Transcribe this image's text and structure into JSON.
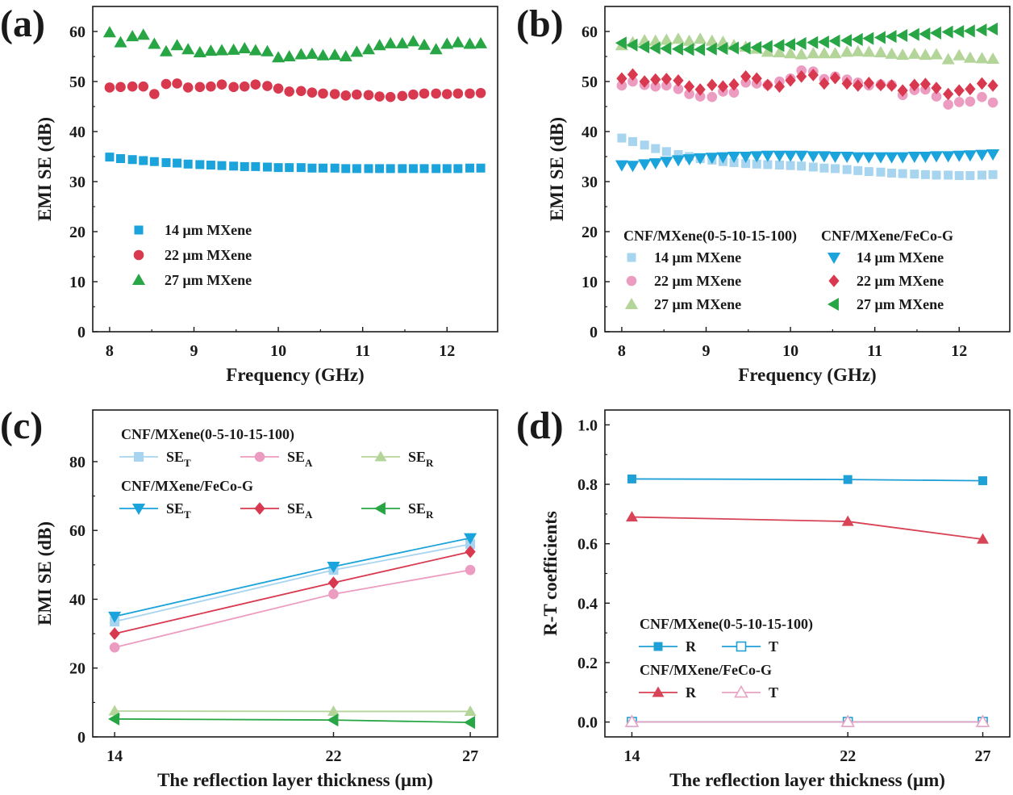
{
  "colors": {
    "blue": "#1ba3dc",
    "red": "#d9394e",
    "green": "#28a645",
    "light_blue": "#a7d4ef",
    "light_pink": "#ec9cc0",
    "light_green": "#b4d59a",
    "line_blue": "#1fa0d6",
    "line_red": "#d84356",
    "line_pink": "#e8a3c3",
    "axis": "#1a1a1a"
  },
  "chart_data": [
    {
      "id": "a",
      "label": "(a)",
      "type": "scatter",
      "xlabel": "Frequency (GHz)",
      "ylabel": "EMI SE (dB)",
      "xlim": [
        7.8,
        12.6
      ],
      "ylim": [
        0,
        65
      ],
      "xticks": [
        8,
        9,
        10,
        11,
        12
      ],
      "yticks": [
        0,
        10,
        20,
        30,
        40,
        50,
        60
      ],
      "legend_position": "lower-left",
      "series": [
        {
          "name": "14 μm  MXene",
          "marker": "square",
          "color": "#1ba3dc",
          "x": [
            8.0,
            8.13,
            8.27,
            8.4,
            8.53,
            8.67,
            8.8,
            8.93,
            9.07,
            9.2,
            9.33,
            9.47,
            9.6,
            9.73,
            9.87,
            10.0,
            10.13,
            10.27,
            10.4,
            10.53,
            10.67,
            10.8,
            10.93,
            11.07,
            11.2,
            11.33,
            11.47,
            11.6,
            11.73,
            11.87,
            12.0,
            12.13,
            12.27,
            12.4
          ],
          "y": [
            34.9,
            34.6,
            34.4,
            34.2,
            34.0,
            33.8,
            33.7,
            33.5,
            33.4,
            33.3,
            33.2,
            33.1,
            33.0,
            33.0,
            32.9,
            32.8,
            32.8,
            32.8,
            32.7,
            32.7,
            32.7,
            32.6,
            32.6,
            32.6,
            32.6,
            32.6,
            32.6,
            32.6,
            32.6,
            32.6,
            32.6,
            32.6,
            32.7,
            32.7
          ]
        },
        {
          "name": "22 μm  MXene",
          "marker": "circle",
          "color": "#d9394e",
          "x": [
            8.0,
            8.13,
            8.27,
            8.4,
            8.53,
            8.67,
            8.8,
            8.93,
            9.07,
            9.2,
            9.33,
            9.47,
            9.6,
            9.73,
            9.87,
            10.0,
            10.13,
            10.27,
            10.4,
            10.53,
            10.67,
            10.8,
            10.93,
            11.07,
            11.2,
            11.33,
            11.47,
            11.6,
            11.73,
            11.87,
            12.0,
            12.13,
            12.27,
            12.4
          ],
          "y": [
            48.8,
            48.9,
            49.0,
            49.0,
            47.5,
            49.5,
            49.6,
            48.8,
            48.9,
            49.0,
            49.4,
            48.9,
            49.0,
            49.4,
            49.1,
            48.6,
            48.0,
            48.1,
            47.8,
            47.6,
            47.5,
            47.2,
            47.4,
            47.3,
            47.0,
            46.9,
            47.1,
            47.4,
            47.6,
            47.6,
            47.5,
            47.6,
            47.6,
            47.7
          ]
        },
        {
          "name": "27 μm  MXene",
          "marker": "triangle-up",
          "color": "#28a645",
          "x": [
            8.0,
            8.13,
            8.27,
            8.4,
            8.53,
            8.67,
            8.8,
            8.93,
            9.07,
            9.2,
            9.33,
            9.47,
            9.6,
            9.73,
            9.87,
            10.0,
            10.13,
            10.27,
            10.4,
            10.53,
            10.67,
            10.8,
            10.93,
            11.07,
            11.2,
            11.33,
            11.47,
            11.6,
            11.73,
            11.87,
            12.0,
            12.13,
            12.27,
            12.4
          ],
          "y": [
            59.8,
            57.8,
            59.0,
            59.3,
            57.5,
            56.0,
            57.2,
            56.4,
            55.8,
            56.1,
            56.2,
            56.3,
            56.6,
            56.2,
            56.0,
            54.8,
            55.0,
            55.4,
            55.5,
            55.2,
            55.3,
            55.0,
            55.9,
            56.4,
            57.2,
            57.6,
            57.6,
            58.0,
            57.3,
            56.4,
            57.5,
            57.8,
            57.5,
            57.6
          ]
        }
      ]
    },
    {
      "id": "b",
      "label": "(b)",
      "type": "scatter",
      "xlabel": "Frequency (GHz)",
      "ylabel": "EMI SE (dB)",
      "xlim": [
        7.8,
        12.6
      ],
      "ylim": [
        0,
        65
      ],
      "xticks": [
        8,
        9,
        10,
        11,
        12
      ],
      "yticks": [
        0,
        10,
        20,
        30,
        40,
        50,
        60
      ],
      "legend_position": "lower",
      "legend_groups": [
        "CNF/MXene(0-5-10-15-100)",
        "CNF/MXene/FeCo-G"
      ],
      "series": [
        {
          "name": "14 μm  MXene",
          "group": 0,
          "marker": "square",
          "color": "#a7d4ef",
          "x": [
            8.0,
            8.13,
            8.27,
            8.4,
            8.53,
            8.67,
            8.8,
            8.93,
            9.07,
            9.2,
            9.33,
            9.47,
            9.6,
            9.73,
            9.87,
            10.0,
            10.13,
            10.27,
            10.4,
            10.53,
            10.67,
            10.8,
            10.93,
            11.07,
            11.2,
            11.33,
            11.47,
            11.6,
            11.73,
            11.87,
            12.0,
            12.13,
            12.27,
            12.4
          ],
          "y": [
            38.7,
            38.0,
            37.3,
            36.6,
            36.0,
            35.4,
            35.0,
            34.6,
            34.3,
            34.0,
            33.8,
            33.6,
            33.5,
            33.4,
            33.3,
            33.2,
            33.1,
            32.9,
            32.7,
            32.6,
            32.4,
            32.2,
            32.0,
            31.9,
            31.7,
            31.6,
            31.5,
            31.4,
            31.3,
            31.3,
            31.2,
            31.2,
            31.3,
            31.4
          ]
        },
        {
          "name": "22 μm  MXene",
          "group": 0,
          "marker": "circle",
          "color": "#ec9cc0",
          "x": [
            8.0,
            8.13,
            8.27,
            8.4,
            8.53,
            8.67,
            8.8,
            8.93,
            9.07,
            9.2,
            9.33,
            9.47,
            9.6,
            9.73,
            9.87,
            10.0,
            10.13,
            10.27,
            10.4,
            10.53,
            10.67,
            10.8,
            10.93,
            11.07,
            11.2,
            11.33,
            11.47,
            11.6,
            11.73,
            11.87,
            12.0,
            12.13,
            12.27,
            12.4
          ],
          "y": [
            49.2,
            50.0,
            49.3,
            49.0,
            49.2,
            48.5,
            47.5,
            47.0,
            46.9,
            48.0,
            47.8,
            49.8,
            49.6,
            49.3,
            50.0,
            50.6,
            52.2,
            52.0,
            50.5,
            51.0,
            50.4,
            49.8,
            49.2,
            49.4,
            49.3,
            47.3,
            48.3,
            48.4,
            47.0,
            45.4,
            45.9,
            46.0,
            46.9,
            45.8
          ]
        },
        {
          "name": "27 μm  MXene",
          "group": 0,
          "marker": "triangle-up",
          "color": "#b4d59a",
          "x": [
            8.0,
            8.13,
            8.27,
            8.4,
            8.53,
            8.67,
            8.8,
            8.93,
            9.07,
            9.2,
            9.33,
            9.47,
            9.6,
            9.73,
            9.87,
            10.0,
            10.13,
            10.27,
            10.4,
            10.53,
            10.67,
            10.8,
            10.93,
            11.07,
            11.2,
            11.33,
            11.47,
            11.6,
            11.73,
            11.87,
            12.0,
            12.13,
            12.27,
            12.4
          ],
          "y": [
            57.2,
            57.8,
            58.2,
            58.1,
            58.3,
            58.5,
            58.1,
            58.5,
            58.1,
            57.9,
            57.2,
            56.9,
            56.5,
            55.9,
            55.8,
            55.6,
            55.4,
            55.6,
            55.6,
            55.6,
            55.9,
            56.0,
            55.9,
            55.8,
            55.5,
            55.3,
            55.5,
            55.3,
            55.4,
            54.4,
            55.2,
            54.7,
            54.6,
            54.5
          ]
        },
        {
          "name": "14 μm  MXene",
          "group": 1,
          "marker": "triangle-down",
          "color": "#1ba3dc",
          "x": [
            8.0,
            8.13,
            8.27,
            8.4,
            8.53,
            8.67,
            8.8,
            8.93,
            9.07,
            9.2,
            9.33,
            9.47,
            9.6,
            9.73,
            9.87,
            10.0,
            10.13,
            10.27,
            10.4,
            10.53,
            10.67,
            10.8,
            10.93,
            11.07,
            11.2,
            11.33,
            11.47,
            11.6,
            11.73,
            11.87,
            12.0,
            12.13,
            12.27,
            12.4
          ],
          "y": [
            33.3,
            33.2,
            33.5,
            33.7,
            34.0,
            34.3,
            34.5,
            34.7,
            34.8,
            34.9,
            35.0,
            35.0,
            35.1,
            35.2,
            35.2,
            35.2,
            35.2,
            35.1,
            35.1,
            35.0,
            35.0,
            34.9,
            34.9,
            34.9,
            34.9,
            34.9,
            35.0,
            35.0,
            35.1,
            35.1,
            35.2,
            35.3,
            35.4,
            35.5
          ]
        },
        {
          "name": "22 μm  MXene",
          "group": 1,
          "marker": "diamond",
          "color": "#d9394e",
          "x": [
            8.0,
            8.13,
            8.27,
            8.4,
            8.53,
            8.67,
            8.8,
            8.93,
            9.07,
            9.2,
            9.33,
            9.47,
            9.6,
            9.73,
            9.87,
            10.0,
            10.13,
            10.27,
            10.4,
            10.53,
            10.67,
            10.8,
            10.93,
            11.07,
            11.2,
            11.33,
            11.47,
            11.6,
            11.73,
            11.87,
            12.0,
            12.13,
            12.27,
            12.4
          ],
          "y": [
            50.6,
            51.4,
            50.0,
            50.4,
            50.5,
            50.2,
            49.0,
            48.4,
            49.3,
            49.0,
            49.4,
            51.0,
            50.6,
            49.3,
            49.0,
            50.2,
            51.0,
            51.3,
            49.6,
            50.7,
            49.6,
            49.2,
            49.7,
            49.3,
            49.2,
            48.2,
            49.3,
            49.5,
            48.7,
            47.5,
            48.2,
            48.5,
            49.6,
            49.2
          ]
        },
        {
          "name": "27 μm  MXene",
          "group": 1,
          "marker": "triangle-left",
          "color": "#28a645",
          "x": [
            8.0,
            8.13,
            8.27,
            8.4,
            8.53,
            8.67,
            8.8,
            8.93,
            9.07,
            9.2,
            9.33,
            9.47,
            9.6,
            9.73,
            9.87,
            10.0,
            10.13,
            10.27,
            10.4,
            10.53,
            10.67,
            10.8,
            10.93,
            11.07,
            11.2,
            11.33,
            11.47,
            11.6,
            11.73,
            11.87,
            12.0,
            12.13,
            12.27,
            12.4
          ],
          "y": [
            57.7,
            57.3,
            56.9,
            56.7,
            56.6,
            56.5,
            56.4,
            56.4,
            56.5,
            56.6,
            56.7,
            56.7,
            56.8,
            57.0,
            57.2,
            57.4,
            57.6,
            57.8,
            57.9,
            58.1,
            58.2,
            58.4,
            58.6,
            58.8,
            59.0,
            59.2,
            59.4,
            59.5,
            59.7,
            59.9,
            60.0,
            60.1,
            60.3,
            60.5
          ]
        }
      ]
    },
    {
      "id": "c",
      "label": "(c)",
      "type": "line",
      "xlabel": "The reflection layer thickness (μm)",
      "ylabel": "EMI SE (dB)",
      "x": [
        14,
        22,
        27
      ],
      "xticks": [
        14,
        22,
        27
      ],
      "xlim": [
        13.2,
        28.0
      ],
      "ylim": [
        0,
        95
      ],
      "yticks": [
        0,
        20,
        40,
        60,
        80
      ],
      "legend_position": "top-left",
      "legend_groups": [
        "CNF/MXene(0-5-10-15-100)",
        "CNF/MXene/FeCo-G"
      ],
      "series": [
        {
          "name": "SE",
          "sub": "T",
          "group": 0,
          "marker": "square",
          "color": "#a7d4ef",
          "y": [
            33.5,
            48.5,
            56.0
          ]
        },
        {
          "name": "SE",
          "sub": "A",
          "group": 0,
          "marker": "circle",
          "color": "#ec9cc0",
          "y": [
            26.0,
            41.5,
            48.5
          ]
        },
        {
          "name": "SE",
          "sub": "R",
          "group": 0,
          "marker": "triangle-up",
          "color": "#b4d59a",
          "y": [
            7.5,
            7.4,
            7.4
          ]
        },
        {
          "name": "SE",
          "sub": "T",
          "group": 1,
          "marker": "triangle-down",
          "color": "#1ba3dc",
          "y": [
            35.0,
            49.5,
            57.8
          ]
        },
        {
          "name": "SE",
          "sub": "A",
          "group": 1,
          "marker": "diamond",
          "color": "#d9394e",
          "y": [
            30.0,
            44.8,
            53.8
          ]
        },
        {
          "name": "SE",
          "sub": "R",
          "group": 1,
          "marker": "triangle-left",
          "color": "#28a645",
          "y": [
            5.2,
            4.9,
            4.2
          ]
        }
      ]
    },
    {
      "id": "d",
      "label": "(d)",
      "type": "line",
      "xlabel": "The reflection layer thickness (μm)",
      "ylabel": "R-T coefficients",
      "x": [
        14,
        22,
        27
      ],
      "xticks": [
        14,
        22,
        27
      ],
      "xlim": [
        13.0,
        28.0
      ],
      "ylim": [
        -0.05,
        1.05
      ],
      "yticks": [
        0.0,
        0.2,
        0.4,
        0.6,
        0.8,
        1.0
      ],
      "legend_position": "lower-left",
      "legend_groups": [
        "CNF/MXene(0-5-10-15-100)",
        "CNF/MXene/FeCo-G"
      ],
      "series": [
        {
          "name": "R",
          "group": 0,
          "marker": "square",
          "color": "#1fa0d6",
          "y": [
            0.818,
            0.816,
            0.812
          ]
        },
        {
          "name": "T",
          "group": 0,
          "marker": "square-open",
          "color": "#1fa0d6",
          "y": [
            0.0005,
            0.0005,
            0.0005
          ]
        },
        {
          "name": "R",
          "group": 1,
          "marker": "triangle-up",
          "color": "#d84356",
          "y": [
            0.69,
            0.675,
            0.615
          ]
        },
        {
          "name": "T",
          "group": 1,
          "marker": "triangle-open",
          "color": "#e8a3c3",
          "y": [
            0.0003,
            0.0003,
            0.0003
          ]
        }
      ]
    }
  ]
}
